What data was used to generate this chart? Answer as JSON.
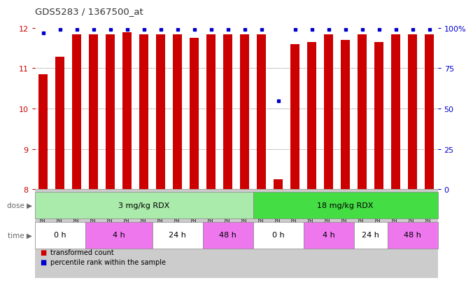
{
  "title": "GDS5283 / 1367500_at",
  "samples": [
    "GSM306952",
    "GSM306954",
    "GSM306956",
    "GSM306958",
    "GSM306960",
    "GSM306962",
    "GSM306964",
    "GSM306966",
    "GSM306968",
    "GSM306970",
    "GSM306972",
    "GSM306974",
    "GSM306976",
    "GSM306978",
    "GSM306980",
    "GSM306982",
    "GSM306984",
    "GSM306986",
    "GSM306988",
    "GSM306990",
    "GSM306992",
    "GSM306994",
    "GSM306996",
    "GSM306998"
  ],
  "red_values": [
    10.85,
    11.28,
    11.85,
    11.85,
    11.85,
    11.9,
    11.85,
    11.85,
    11.85,
    11.75,
    11.85,
    11.85,
    11.85,
    11.85,
    8.25,
    11.6,
    11.65,
    11.85,
    11.7,
    11.85,
    11.65,
    11.85,
    11.85,
    11.85
  ],
  "blue_percentile": [
    97,
    99,
    99,
    99,
    99,
    99,
    99,
    99,
    99,
    99,
    99,
    99,
    99,
    99,
    55,
    99,
    99,
    99,
    99,
    99,
    99,
    99,
    99,
    99
  ],
  "ymin": 8.0,
  "ymax": 12.0,
  "yticks": [
    8,
    9,
    10,
    11,
    12
  ],
  "right_ytick_vals": [
    0,
    25,
    50,
    75,
    100
  ],
  "right_ytick_labels": [
    "0",
    "25",
    "50",
    "75",
    "100%"
  ],
  "dose_groups": [
    {
      "label": "3 mg/kg RDX",
      "start": 0,
      "end": 13,
      "color": "#AAEAAA"
    },
    {
      "label": "18 mg/kg RDX",
      "start": 13,
      "end": 24,
      "color": "#44DD44"
    }
  ],
  "time_groups": [
    {
      "label": "0 h",
      "start": 0,
      "end": 3,
      "color": "#FFFFFF"
    },
    {
      "label": "4 h",
      "start": 3,
      "end": 7,
      "color": "#EE77EE"
    },
    {
      "label": "24 h",
      "start": 7,
      "end": 10,
      "color": "#FFFFFF"
    },
    {
      "label": "48 h",
      "start": 10,
      "end": 13,
      "color": "#EE77EE"
    },
    {
      "label": "0 h",
      "start": 13,
      "end": 16,
      "color": "#FFFFFF"
    },
    {
      "label": "4 h",
      "start": 16,
      "end": 19,
      "color": "#EE77EE"
    },
    {
      "label": "24 h",
      "start": 19,
      "end": 21,
      "color": "#FFFFFF"
    },
    {
      "label": "48 h",
      "start": 21,
      "end": 24,
      "color": "#EE77EE"
    }
  ],
  "bar_color": "#CC0000",
  "dot_color": "#0000CC",
  "bg_color": "#FFFFFF",
  "tick_label_bg": "#CCCCCC",
  "grid_color": "#555555",
  "legend_red": "transformed count",
  "legend_blue": "percentile rank within the sample",
  "bar_width": 0.55
}
